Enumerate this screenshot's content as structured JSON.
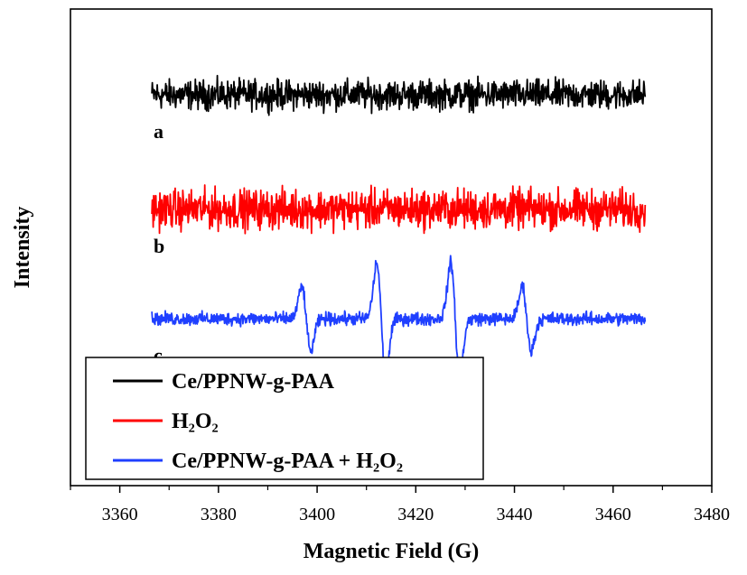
{
  "chart_data": {
    "type": "line",
    "title": "",
    "xlabel": "Magnetic Field (G)",
    "ylabel": "Intensity",
    "xlim": [
      3350,
      3480
    ],
    "xticks": [
      3360,
      3380,
      3400,
      3420,
      3440,
      3460,
      3480
    ],
    "yticks_shown": false,
    "grid": false,
    "legend_position": "bottom-left",
    "trace_range": [
      3366.5,
      3466.5
    ],
    "series": [
      {
        "name": "Ce/PPNW-g-PAA",
        "label": "a",
        "color": "#000000",
        "offset": 0.82,
        "noise_amplitude": 0.045,
        "peaks": []
      },
      {
        "name": "H₂O₂",
        "label": "b",
        "color": "#ff0000",
        "offset": 0.58,
        "noise_amplitude": 0.06,
        "peaks": []
      },
      {
        "name": "Ce/PPNW-g-PAA + H₂O₂",
        "label": "c",
        "color": "#1f3fff",
        "offset": 0.35,
        "noise_amplitude": 0.02,
        "peaks": [
          {
            "center": 3397.8,
            "amplitude": 0.07
          },
          {
            "center": 3413.0,
            "amplitude": 0.12
          },
          {
            "center": 3428.0,
            "amplitude": 0.12
          },
          {
            "center": 3442.5,
            "amplitude": 0.07
          }
        ]
      }
    ]
  }
}
